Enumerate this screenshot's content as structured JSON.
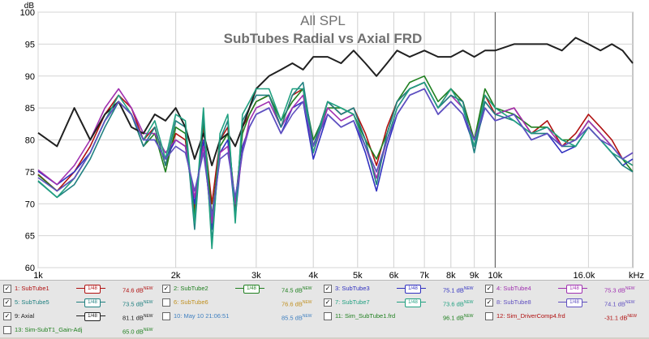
{
  "chart_data": {
    "type": "line",
    "title": "All SPL",
    "subtitle": "SubTubes Radial vs Axial FRD",
    "ylabel": "dB",
    "y_unit_label": "dB",
    "x_unit_label": "kHz",
    "x_scale": "log",
    "xlim": [
      1000,
      20000
    ],
    "ylim": [
      60,
      100
    ],
    "grid": true,
    "x_ticks": [
      {
        "value": 1000,
        "label": "1k"
      },
      {
        "value": 2000,
        "label": "2k"
      },
      {
        "value": 3000,
        "label": "3k"
      },
      {
        "value": 4000,
        "label": "4k"
      },
      {
        "value": 5000,
        "label": "5k"
      },
      {
        "value": 6000,
        "label": "6k"
      },
      {
        "value": 7000,
        "label": "7k"
      },
      {
        "value": 8000,
        "label": "8k"
      },
      {
        "value": 9000,
        "label": "9k"
      },
      {
        "value": 10000,
        "label": "10k"
      },
      {
        "value": 16000,
        "label": "16.0k"
      }
    ],
    "y_ticks": [
      60,
      65,
      70,
      75,
      80,
      85,
      90,
      95,
      100
    ],
    "cursor_x": 10000,
    "series": [
      {
        "name": "SubTube1",
        "color": "#b01010",
        "x": [
          1000,
          1100,
          1200,
          1300,
          1400,
          1500,
          1600,
          1700,
          1800,
          1900,
          2000,
          2100,
          2200,
          2300,
          2400,
          2500,
          2600,
          2700,
          2800,
          2900,
          3000,
          3200,
          3400,
          3600,
          3800,
          4000,
          4300,
          4600,
          4900,
          5200,
          5500,
          5800,
          6100,
          6500,
          7000,
          7500,
          8000,
          8500,
          9000,
          9500,
          10000,
          11000,
          12000,
          13000,
          14000,
          15000,
          16000,
          17000,
          18000,
          19000,
          20000
        ],
        "y": [
          74.6,
          72,
          75,
          79,
          84,
          87,
          85,
          80,
          82,
          76,
          81,
          80,
          69,
          82,
          70,
          80,
          82,
          69,
          82,
          84,
          86,
          87,
          82,
          87,
          88,
          79,
          86,
          84,
          85,
          81,
          76,
          82,
          86,
          88,
          89,
          85,
          88,
          86,
          80,
          87,
          84,
          85,
          81,
          83,
          79,
          81,
          84,
          82,
          80,
          77,
          76
        ]
      },
      {
        "name": "SubTube2",
        "color": "#208020",
        "x": [
          1000,
          1100,
          1200,
          1300,
          1400,
          1500,
          1600,
          1700,
          1800,
          1900,
          2000,
          2100,
          2200,
          2300,
          2400,
          2500,
          2600,
          2700,
          2800,
          2900,
          3000,
          3200,
          3400,
          3600,
          3800,
          4000,
          4300,
          4600,
          4900,
          5200,
          5500,
          5800,
          6100,
          6500,
          7000,
          7500,
          8000,
          8500,
          9000,
          9500,
          10000,
          11000,
          12000,
          13000,
          14000,
          15000,
          16000,
          17000,
          18000,
          19000,
          20000
        ],
        "y": [
          74.5,
          72,
          74,
          78,
          83,
          86,
          84,
          79,
          81,
          75,
          82,
          81,
          68,
          83,
          68,
          79,
          81,
          70,
          81,
          84,
          86,
          87,
          83,
          86,
          88,
          80,
          85,
          85,
          84,
          80,
          77,
          81,
          86,
          89,
          90,
          86,
          88,
          86,
          80,
          88,
          85,
          84,
          82,
          82,
          80,
          80,
          83,
          81,
          79,
          77,
          75
        ]
      },
      {
        "name": "SubTube3",
        "color": "#3030c0",
        "x": [
          1000,
          1100,
          1200,
          1300,
          1400,
          1500,
          1600,
          1700,
          1800,
          1900,
          2000,
          2100,
          2200,
          2300,
          2400,
          2500,
          2600,
          2700,
          2800,
          2900,
          3000,
          3200,
          3400,
          3600,
          3800,
          4000,
          4300,
          4600,
          4900,
          5200,
          5500,
          5800,
          6100,
          6500,
          7000,
          7500,
          8000,
          8500,
          9000,
          9500,
          10000,
          11000,
          12000,
          13000,
          14000,
          15000,
          16000,
          17000,
          18000,
          19000,
          20000
        ],
        "y": [
          75.1,
          73,
          75,
          78,
          83,
          86,
          84,
          80,
          80,
          77,
          80,
          79,
          70,
          80,
          66,
          78,
          80,
          68,
          79,
          82,
          84,
          85,
          81,
          85,
          86,
          77,
          84,
          82,
          83,
          78,
          72,
          79,
          84,
          87,
          88,
          84,
          86,
          84,
          79,
          85,
          83,
          84,
          80,
          81,
          78,
          79,
          82,
          80,
          78,
          76,
          77
        ]
      },
      {
        "name": "SubTube4",
        "color": "#a030b0",
        "x": [
          1000,
          1100,
          1200,
          1300,
          1400,
          1500,
          1600,
          1700,
          1800,
          1900,
          2000,
          2100,
          2200,
          2300,
          2400,
          2500,
          2600,
          2700,
          2800,
          2900,
          3000,
          3200,
          3400,
          3600,
          3800,
          4000,
          4300,
          4600,
          4900,
          5200,
          5500,
          5800,
          6100,
          6500,
          7000,
          7500,
          8000,
          8500,
          9000,
          9500,
          10000,
          11000,
          12000,
          13000,
          14000,
          15000,
          16000,
          17000,
          18000,
          19000,
          20000
        ],
        "y": [
          75.3,
          73,
          76,
          80,
          85,
          88,
          85,
          81,
          81,
          78,
          80,
          79,
          71,
          79,
          67,
          78,
          79,
          70,
          78,
          83,
          85,
          86,
          82,
          85,
          87,
          78,
          85,
          83,
          84,
          79,
          74,
          80,
          85,
          88,
          89,
          85,
          87,
          85,
          79,
          86,
          84,
          85,
          81,
          82,
          79,
          80,
          83,
          81,
          79,
          77,
          78
        ]
      },
      {
        "name": "SubTube5",
        "color": "#208080",
        "x": [
          1000,
          1100,
          1200,
          1300,
          1400,
          1500,
          1600,
          1700,
          1800,
          1900,
          2000,
          2100,
          2200,
          2300,
          2400,
          2500,
          2600,
          2700,
          2800,
          2900,
          3000,
          3200,
          3400,
          3600,
          3800,
          4000,
          4300,
          4600,
          4900,
          5200,
          5500,
          5800,
          6100,
          6500,
          7000,
          7500,
          8000,
          8500,
          9000,
          9500,
          10000,
          11000,
          12000,
          13000,
          14000,
          15000,
          16000,
          17000,
          18000,
          19000,
          20000
        ],
        "y": [
          73.5,
          71,
          73,
          77,
          82,
          86,
          84,
          79,
          82,
          76,
          83,
          82,
          66,
          84,
          64,
          80,
          83,
          68,
          83,
          85,
          87,
          87,
          82,
          87,
          89,
          79,
          86,
          84,
          85,
          80,
          73,
          81,
          86,
          88,
          89,
          85,
          87,
          86,
          78,
          86,
          84,
          83,
          81,
          81,
          79,
          79,
          82,
          80,
          78,
          76,
          75
        ]
      },
      {
        "name": "Axial",
        "color": "#202020",
        "x": [
          1000,
          1100,
          1200,
          1300,
          1400,
          1500,
          1600,
          1700,
          1800,
          1900,
          2000,
          2100,
          2200,
          2300,
          2400,
          2500,
          2600,
          2700,
          2800,
          2900,
          3000,
          3200,
          3400,
          3600,
          3800,
          4000,
          4300,
          4600,
          4900,
          5200,
          5500,
          5800,
          6100,
          6500,
          7000,
          7500,
          8000,
          8500,
          9000,
          9500,
          10000,
          11000,
          12000,
          13000,
          14000,
          15000,
          16000,
          17000,
          18000,
          19000,
          20000
        ],
        "y": [
          81.1,
          79,
          85,
          80,
          84,
          86,
          82,
          81,
          84,
          83,
          85,
          82,
          77,
          81,
          76,
          80,
          81,
          79,
          82,
          85,
          88,
          90,
          91,
          92,
          91,
          93,
          93,
          92,
          94,
          92,
          90,
          92,
          94,
          93,
          94,
          93,
          93,
          94,
          93,
          94,
          94,
          95,
          95,
          95,
          94,
          96,
          95,
          94,
          95,
          94,
          92
        ]
      },
      {
        "name": "SubTube7",
        "color": "#20a080",
        "x": [
          1000,
          1100,
          1200,
          1300,
          1400,
          1500,
          1600,
          1700,
          1800,
          1900,
          2000,
          2100,
          2200,
          2300,
          2400,
          2500,
          2600,
          2700,
          2800,
          2900,
          3000,
          3200,
          3400,
          3600,
          3800,
          4000,
          4300,
          4600,
          4900,
          5200,
          5500,
          5800,
          6100,
          6500,
          7000,
          7500,
          8000,
          8500,
          9000,
          9500,
          10000,
          11000,
          12000,
          13000,
          14000,
          15000,
          16000,
          17000,
          18000,
          19000,
          20000
        ],
        "y": [
          73.6,
          71,
          74,
          78,
          83,
          87,
          84,
          80,
          83,
          77,
          84,
          83,
          67,
          85,
          63,
          81,
          84,
          67,
          84,
          86,
          88,
          88,
          83,
          88,
          88,
          78,
          86,
          85,
          84,
          79,
          75,
          80,
          85,
          88,
          89,
          85,
          88,
          85,
          79,
          87,
          85,
          83,
          81,
          82,
          80,
          79,
          82,
          80,
          78,
          77,
          76
        ]
      },
      {
        "name": "SubTube8",
        "color": "#6050c0",
        "x": [
          1000,
          1100,
          1200,
          1300,
          1400,
          1500,
          1600,
          1700,
          1800,
          1900,
          2000,
          2100,
          2200,
          2300,
          2400,
          2500,
          2600,
          2700,
          2800,
          2900,
          3000,
          3200,
          3400,
          3600,
          3800,
          4000,
          4300,
          4600,
          4900,
          5200,
          5500,
          5800,
          6100,
          6500,
          7000,
          7500,
          8000,
          8500,
          9000,
          9500,
          10000,
          11000,
          12000,
          13000,
          14000,
          15000,
          16000,
          17000,
          18000,
          19000,
          20000
        ],
        "y": [
          74.1,
          72,
          74,
          78,
          83,
          86,
          84,
          80,
          80,
          77,
          79,
          78,
          72,
          78,
          68,
          77,
          78,
          71,
          78,
          82,
          84,
          85,
          81,
          84,
          86,
          79,
          84,
          82,
          83,
          79,
          75,
          80,
          84,
          87,
          88,
          84,
          86,
          84,
          80,
          85,
          83,
          84,
          80,
          81,
          79,
          80,
          82,
          80,
          79,
          77,
          78
        ]
      }
    ]
  },
  "legend": {
    "items": [
      {
        "label": "1: SubTube1",
        "checked": true,
        "value": "74.6 dB",
        "new": "NEW",
        "color": "#b01010",
        "value_color": "#b01010",
        "ctrl": "1/48"
      },
      {
        "label": "2: SubTube2",
        "checked": true,
        "value": "74.5 dB",
        "new": "NEW",
        "color": "#208020",
        "value_color": "#208020",
        "ctrl": "1/48"
      },
      {
        "label": "3: SubTube3",
        "checked": true,
        "value": "75.1 dB",
        "new": "NEW",
        "color": "#3030c0",
        "value_color": "#3030c0",
        "ctrl": "1/48"
      },
      {
        "label": "4: SubTube4",
        "checked": true,
        "value": "75.3 dB",
        "new": "NEW",
        "color": "#a030b0",
        "value_color": "#a030b0",
        "ctrl": "1/48"
      },
      {
        "label": "5: SubTube5",
        "checked": true,
        "value": "73.5 dB",
        "new": "NEW",
        "color": "#208080",
        "value_color": "#208080",
        "ctrl": "1/48"
      },
      {
        "label": "6: SubTube6",
        "checked": false,
        "value": "76.6 dB",
        "new": "NEW",
        "color": "#c09020",
        "value_color": "#c09020",
        "ctrl": ""
      },
      {
        "label": "7: SubTube7",
        "checked": true,
        "value": "73.6 dB",
        "new": "NEW",
        "color": "#20a080",
        "value_color": "#20a080",
        "ctrl": "1/48"
      },
      {
        "label": "8: SubTube8",
        "checked": true,
        "value": "74.1 dB",
        "new": "NEW",
        "color": "#6050c0",
        "value_color": "#6050c0",
        "ctrl": "1/48"
      },
      {
        "label": "9: Axial",
        "checked": true,
        "value": "81.1 dB",
        "new": "NEW",
        "color": "#202020",
        "value_color": "#202020",
        "ctrl": "1/48"
      },
      {
        "label": "10: May 10 21:06:51",
        "checked": false,
        "value": "85.5 dB",
        "new": "NEW",
        "color": "#4080c0",
        "value_color": "#4080c0",
        "ctrl": ""
      },
      {
        "label": "11: Sim_SubTube1.frd",
        "checked": false,
        "value": "96.1 dB",
        "new": "NEW",
        "color": "#208020",
        "value_color": "#208020",
        "ctrl": ""
      },
      {
        "label": "12: Sim_DriverComp4.frd",
        "checked": false,
        "value": "-31.1 dB",
        "new": "NEW",
        "color": "#b01010",
        "value_color": "#b01010",
        "ctrl": ""
      },
      {
        "label": "13: Sim-SubT1_Gain-Adj",
        "checked": false,
        "value": "65.0 dB",
        "new": "NEW",
        "color": "#208020",
        "value_color": "#208020",
        "ctrl": ""
      }
    ]
  }
}
